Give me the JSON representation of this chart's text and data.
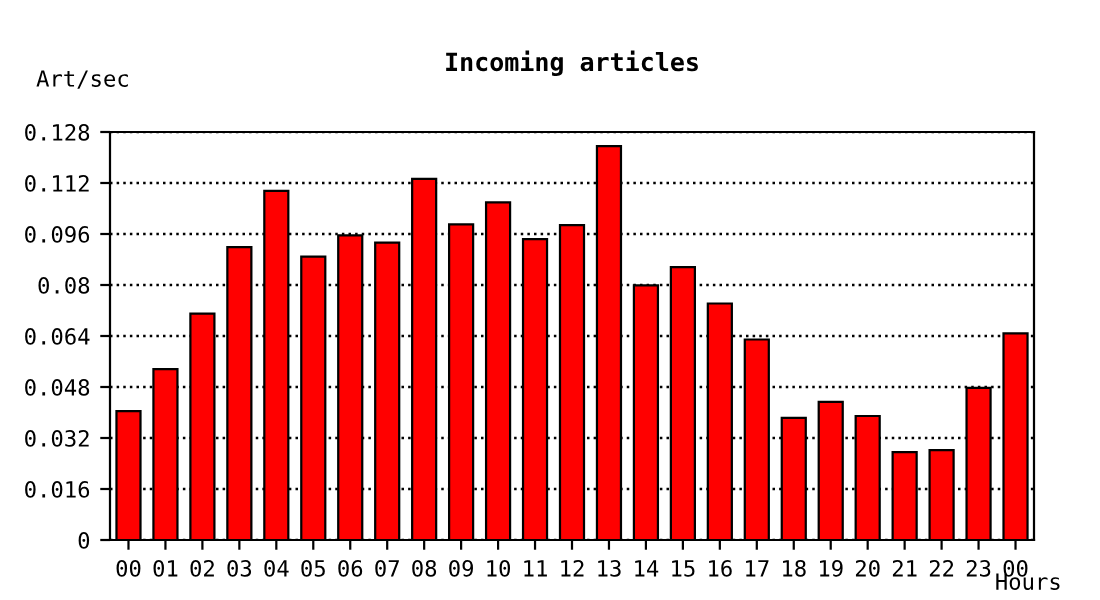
{
  "chart_data": {
    "type": "bar",
    "title": "Incoming articles",
    "xlabel": "Hours",
    "ylabel": "Art/sec",
    "categories": [
      "00",
      "01",
      "02",
      "03",
      "04",
      "05",
      "06",
      "07",
      "08",
      "09",
      "10",
      "11",
      "12",
      "13",
      "14",
      "15",
      "16",
      "17",
      "18",
      "19",
      "20",
      "21",
      "22",
      "23",
      "00"
    ],
    "values": [
      0.0404,
      0.0536,
      0.071,
      0.0919,
      0.1095,
      0.0889,
      0.0956,
      0.0933,
      0.1133,
      0.099,
      0.1059,
      0.0944,
      0.0988,
      0.1236,
      0.0799,
      0.0856,
      0.0742,
      0.0629,
      0.0383,
      0.0433,
      0.0389,
      0.0276,
      0.0282,
      0.0477,
      0.0648
    ],
    "color": "#ff0000",
    "ylim": [
      0,
      0.128
    ],
    "yticks": [
      0,
      0.016,
      0.032,
      0.048,
      0.064,
      0.08,
      0.096,
      0.112,
      0.128
    ],
    "grid": "y",
    "line_style": "dotted"
  }
}
